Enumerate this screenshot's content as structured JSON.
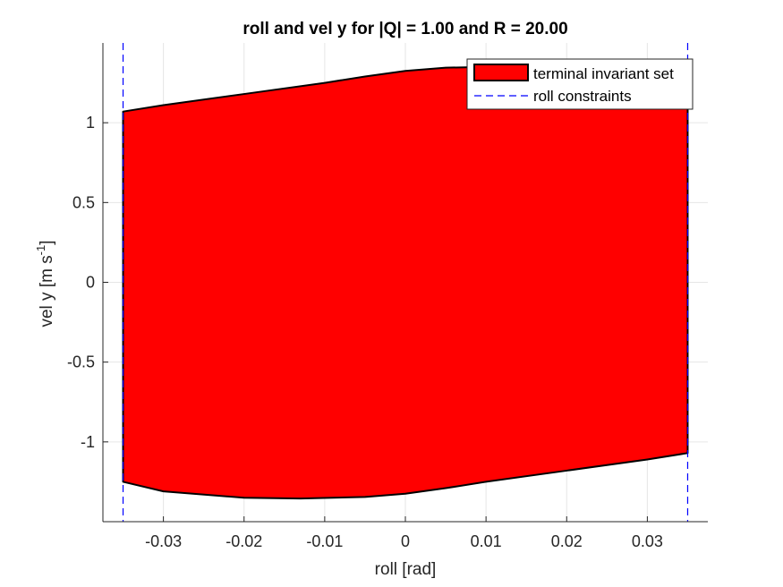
{
  "chart_data": {
    "type": "area",
    "title": "roll and vel y for |Q| = 1.00 and R = 20.00",
    "xlabel": "roll [rad]",
    "ylabel": {
      "main": "vel y [m s",
      "superscript": "-1",
      "close": "]"
    },
    "xlim": [
      -0.0375,
      0.0375
    ],
    "ylim": [
      -1.5,
      1.5
    ],
    "xticks": [
      -0.03,
      -0.02,
      -0.01,
      0,
      0.01,
      0.02,
      0.03
    ],
    "xtick_labels": [
      "-0.03",
      "-0.02",
      "-0.01",
      "0",
      "0.01",
      "0.02",
      "0.03"
    ],
    "yticks": [
      -1,
      -0.5,
      0,
      0.5,
      1
    ],
    "ytick_labels": [
      "-1",
      "-0.5",
      "0",
      "0.5",
      "1"
    ],
    "grid": true,
    "legend_position": "top-right",
    "series": [
      {
        "name": "terminal invariant set",
        "kind": "filled-polygon",
        "fill": "#ff0000",
        "edge": "#000000",
        "points": [
          [
            -0.035,
            1.07
          ],
          [
            -0.03,
            1.11
          ],
          [
            -0.02,
            1.18
          ],
          [
            -0.01,
            1.25
          ],
          [
            -0.005,
            1.29
          ],
          [
            0,
            1.325
          ],
          [
            0.005,
            1.345
          ],
          [
            0.01,
            1.35
          ],
          [
            0.02,
            1.31
          ],
          [
            0.03,
            1.23
          ],
          [
            0.035,
            1.21
          ],
          [
            0.035,
            -1.07
          ],
          [
            0.03,
            -1.11
          ],
          [
            0.02,
            -1.18
          ],
          [
            0.01,
            -1.25
          ],
          [
            0.005,
            -1.29
          ],
          [
            0,
            -1.325
          ],
          [
            -0.005,
            -1.345
          ],
          [
            -0.013,
            -1.355
          ],
          [
            -0.02,
            -1.35
          ],
          [
            -0.03,
            -1.31
          ],
          [
            -0.035,
            -1.25
          ]
        ]
      },
      {
        "name": "roll constraints",
        "kind": "vertical-dashed-lines",
        "color": "#0000ff",
        "x": [
          -0.035,
          0.035
        ]
      }
    ]
  }
}
